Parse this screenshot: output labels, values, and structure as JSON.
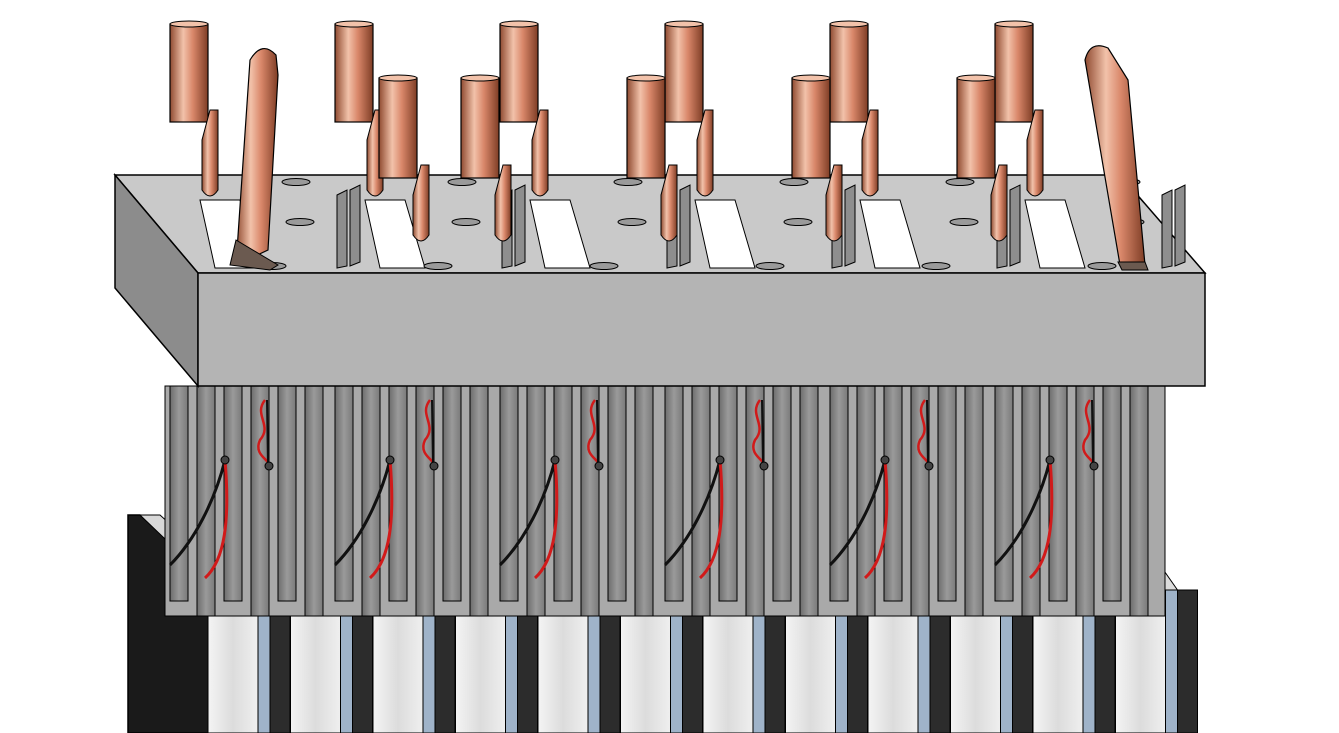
{
  "figure": {
    "kind": "cad-render-battery-stack-with-busbar-holder",
    "text_labels": [],
    "cell_groups": 6,
    "plates_per_group": 2,
    "sensor_wires_per_group": 2,
    "mounting_holes": {
      "rows": 3,
      "per_row": 6
    },
    "colors": {
      "background": "#ffffff",
      "holder_top": "#c9c9c9",
      "holder_front": "#b4b4b4",
      "holder_side": "#8c8c8c",
      "plate": "#8e8e8e",
      "plate_dark": "#5e5e5e",
      "cell_body": "#e6e6e6",
      "cell_side": "#2c2c2c",
      "cell_edge": "#9fb3c9",
      "end_plate": "#1a1a1a",
      "copper": "#d9876a",
      "copper_light": "#f2c2aa",
      "copper_dark": "#8f4a30",
      "wire_red": "#d11a1a",
      "wire_black": "#111111",
      "outline": "#000000"
    },
    "icons": [
      "copper-terminal-icon",
      "busbar-loop-icon",
      "sensor-wire-icon"
    ]
  }
}
